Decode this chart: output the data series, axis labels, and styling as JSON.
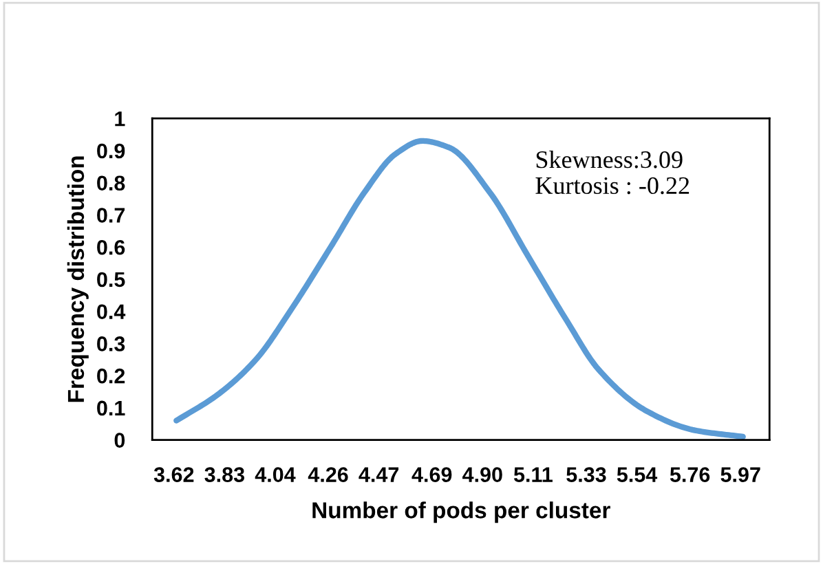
{
  "chart_data": {
    "type": "line",
    "xlabel": "Number of pods per cluster",
    "ylabel": "Frequency distribution",
    "x": [
      3.63,
      3.8,
      3.96,
      4.11,
      4.27,
      4.41,
      4.54,
      4.65,
      4.76,
      4.93,
      5.09,
      5.25,
      5.38,
      5.58,
      5.78,
      5.98
    ],
    "series": [
      {
        "color": "#5b9bd5",
        "values": [
          0.06,
          0.14,
          0.25,
          0.41,
          0.6,
          0.77,
          0.89,
          0.93,
          0.91,
          0.77,
          0.57,
          0.37,
          0.22,
          0.09,
          0.03,
          0.01
        ]
      }
    ],
    "xlim": [
      3.53,
      6.09
    ],
    "xticks": [
      3.62,
      3.83,
      4.04,
      4.26,
      4.47,
      4.69,
      {
        "value": 4.9,
        "label": "4.90"
      },
      5.11,
      5.33,
      5.54,
      5.76,
      5.97
    ],
    "ylim": [
      0,
      1
    ],
    "yticks": [
      0,
      0.1,
      0.2,
      0.3,
      0.4,
      0.5,
      0.6,
      0.7,
      0.8,
      0.9,
      1
    ],
    "annotations": [
      "Skewness:3.09\nKurtosis : -0.22"
    ],
    "grid": false,
    "legend": false,
    "marker": "none",
    "line_style": "solid"
  }
}
